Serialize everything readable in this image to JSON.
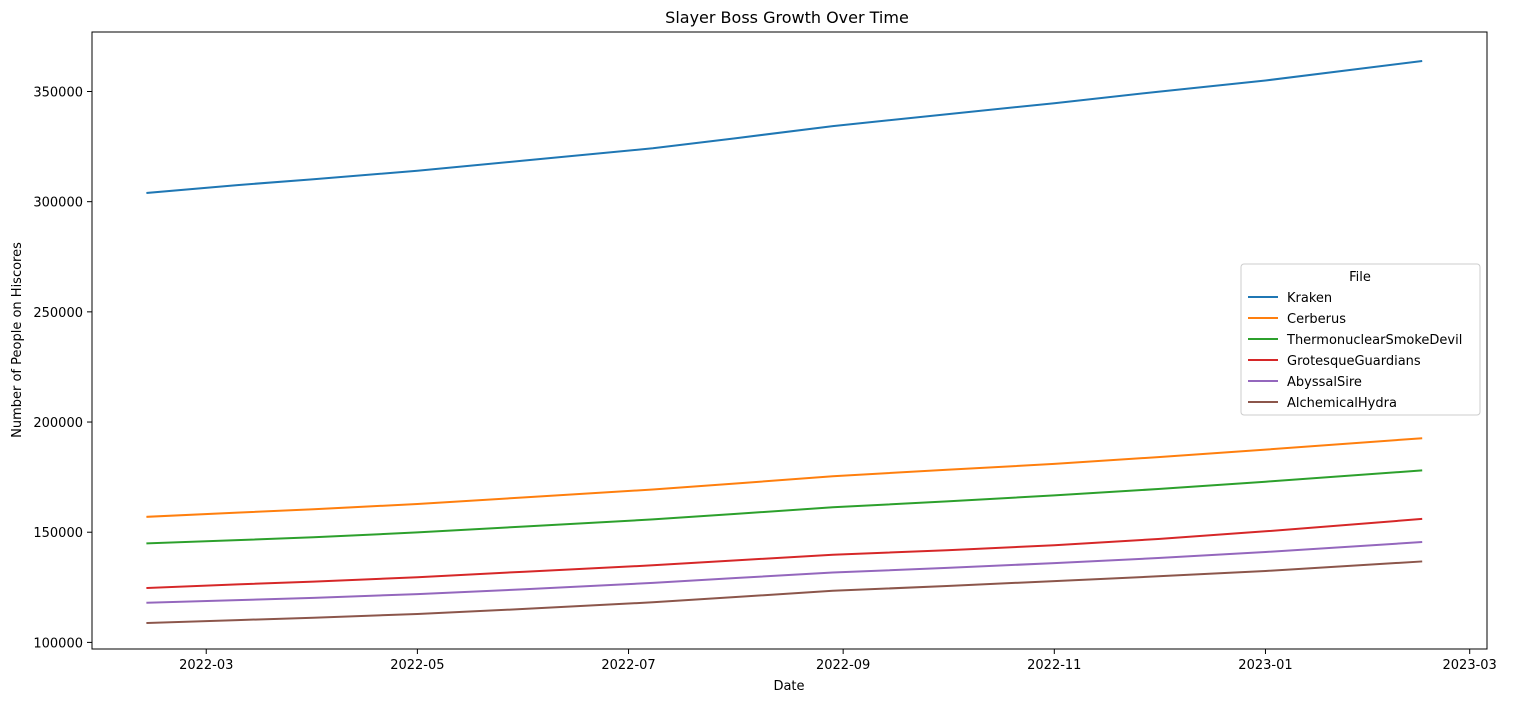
{
  "chart_data": {
    "type": "line",
    "title": "Slayer Boss Growth Over Time",
    "xlabel": "Date",
    "ylabel": "Number of People on Hiscores",
    "x_ticks": [
      "2022-03",
      "2022-05",
      "2022-07",
      "2022-09",
      "2022-11",
      "2023-01",
      "2023-03"
    ],
    "y_ticks": [
      "100000",
      "150000",
      "200000",
      "250000",
      "300000",
      "350000"
    ],
    "xlim": [
      "2022-01-27",
      "2023-03-06"
    ],
    "ylim": [
      97000,
      377000
    ],
    "grid": false,
    "legend": {
      "title": "File",
      "placement": "center-right"
    },
    "series": [
      {
        "name": "Kraken",
        "color": "#1f77b4",
        "points": [
          [
            "2022-02-12",
            304000
          ],
          [
            "2022-03-10",
            307500
          ],
          [
            "2022-04-01",
            310200
          ],
          [
            "2022-05-01",
            314000
          ],
          [
            "2022-06-01",
            318700
          ],
          [
            "2022-07-08",
            324200
          ],
          [
            "2022-08-01",
            328800
          ],
          [
            "2022-08-29",
            334300
          ],
          [
            "2022-10-01",
            339700
          ],
          [
            "2022-11-01",
            344700
          ],
          [
            "2022-12-01",
            349900
          ],
          [
            "2023-01-01",
            355000
          ],
          [
            "2023-02-15",
            363800
          ]
        ]
      },
      {
        "name": "Cerberus",
        "color": "#ff7f0e",
        "points": [
          [
            "2022-02-12",
            157000
          ],
          [
            "2022-03-10",
            158900
          ],
          [
            "2022-04-01",
            160400
          ],
          [
            "2022-05-01",
            162800
          ],
          [
            "2022-06-01",
            165800
          ],
          [
            "2022-07-08",
            169400
          ],
          [
            "2022-08-01",
            172100
          ],
          [
            "2022-08-29",
            175400
          ],
          [
            "2022-10-01",
            178300
          ],
          [
            "2022-11-01",
            181000
          ],
          [
            "2022-12-01",
            184100
          ],
          [
            "2023-01-01",
            187500
          ],
          [
            "2023-02-15",
            192600
          ]
        ]
      },
      {
        "name": "ThermonuclearSmokeDevil",
        "color": "#2ca02c",
        "points": [
          [
            "2022-02-12",
            144900
          ],
          [
            "2022-03-10",
            146400
          ],
          [
            "2022-04-01",
            147700
          ],
          [
            "2022-05-01",
            149900
          ],
          [
            "2022-06-01",
            152600
          ],
          [
            "2022-07-08",
            155800
          ],
          [
            "2022-08-01",
            158300
          ],
          [
            "2022-08-29",
            161300
          ],
          [
            "2022-10-01",
            164000
          ],
          [
            "2022-11-01",
            166700
          ],
          [
            "2022-12-01",
            169600
          ],
          [
            "2023-01-01",
            172900
          ],
          [
            "2023-02-15",
            178000
          ]
        ]
      },
      {
        "name": "GrotesqueGuardians",
        "color": "#d62728",
        "points": [
          [
            "2022-02-12",
            124700
          ],
          [
            "2022-03-10",
            126300
          ],
          [
            "2022-04-01",
            127600
          ],
          [
            "2022-05-01",
            129600
          ],
          [
            "2022-06-01",
            132100
          ],
          [
            "2022-07-08",
            135000
          ],
          [
            "2022-08-01",
            137200
          ],
          [
            "2022-08-29",
            139800
          ],
          [
            "2022-10-01",
            141800
          ],
          [
            "2022-11-01",
            144100
          ],
          [
            "2022-12-01",
            146900
          ],
          [
            "2023-01-01",
            150400
          ],
          [
            "2023-02-15",
            156000
          ]
        ]
      },
      {
        "name": "AbyssalSire",
        "color": "#9467bd",
        "points": [
          [
            "2022-02-12",
            118000
          ],
          [
            "2022-03-10",
            119200
          ],
          [
            "2022-04-01",
            120200
          ],
          [
            "2022-05-01",
            121900
          ],
          [
            "2022-06-01",
            124100
          ],
          [
            "2022-07-08",
            127000
          ],
          [
            "2022-08-01",
            129200
          ],
          [
            "2022-08-29",
            131700
          ],
          [
            "2022-10-01",
            133800
          ],
          [
            "2022-11-01",
            136000
          ],
          [
            "2022-12-01",
            138300
          ],
          [
            "2023-01-01",
            141000
          ],
          [
            "2023-02-15",
            145500
          ]
        ]
      },
      {
        "name": "AlchemicalHydra",
        "color": "#8c564b",
        "points": [
          [
            "2022-02-12",
            108800
          ],
          [
            "2022-03-10",
            110100
          ],
          [
            "2022-04-01",
            111200
          ],
          [
            "2022-05-01",
            112900
          ],
          [
            "2022-06-01",
            115200
          ],
          [
            "2022-07-08",
            118200
          ],
          [
            "2022-08-01",
            120600
          ],
          [
            "2022-08-29",
            123400
          ],
          [
            "2022-10-01",
            125600
          ],
          [
            "2022-11-01",
            127800
          ],
          [
            "2022-12-01",
            130000
          ],
          [
            "2023-01-01",
            132400
          ],
          [
            "2023-02-15",
            136700
          ]
        ]
      }
    ]
  }
}
